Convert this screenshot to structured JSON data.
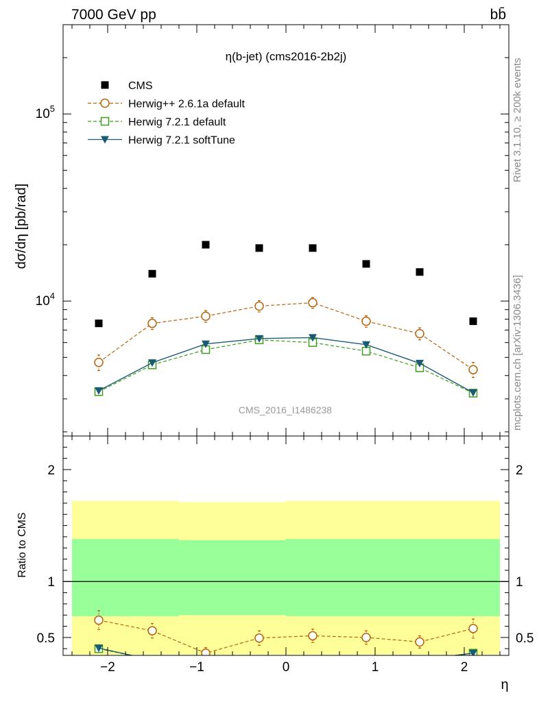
{
  "header": {
    "left": "7000 GeV pp",
    "right": "bb̄"
  },
  "side_labels": {
    "rivet": "Rivet 3.1.10, ≥ 200k events",
    "mcplots": "mcplots.cern.ch [arXiv:1306.3436]"
  },
  "chart_data": [
    {
      "type": "scatter",
      "title": "η(b-jet) (cms2016-2b2j)",
      "watermark": "CMS_2016_I1486238",
      "ylabel": "dσ/dη [pb/rad]",
      "yscale": "log",
      "xlim": [
        -2.5,
        2.5
      ],
      "ylim": [
        1900,
        300000
      ],
      "ytick_labels": [
        "10^4",
        "10^5"
      ],
      "legend_position": "top-left",
      "x": [
        -2.1,
        -1.5,
        -0.9,
        -0.3,
        0.3,
        0.9,
        1.5,
        2.1
      ],
      "series": [
        {
          "name": "CMS",
          "color": "#000000",
          "marker": "filled-square",
          "line": "none",
          "values": [
            7600,
            14000,
            20000,
            19200,
            19200,
            15800,
            14300,
            7800
          ]
        },
        {
          "name": "Herwig++ 2.6.1a default",
          "color": "#b8620a",
          "marker": "open-circle",
          "line": "dashed",
          "values": [
            4700,
            7600,
            8300,
            9400,
            9800,
            7800,
            6700,
            4300
          ],
          "errors": [
            450,
            550,
            600,
            650,
            650,
            550,
            500,
            400
          ]
        },
        {
          "name": "Herwig 7.2.1 default",
          "color": "#3a9e1a",
          "marker": "open-square",
          "line": "dashed",
          "values": [
            3280,
            4560,
            5500,
            6200,
            6000,
            5400,
            4400,
            3220
          ]
        },
        {
          "name": "Herwig 7.2.1 softTune",
          "color": "#1c5a74",
          "marker": "filled-triangle-down",
          "line": "solid",
          "values": [
            3320,
            4680,
            5900,
            6300,
            6380,
            5850,
            4650,
            3240
          ]
        }
      ]
    },
    {
      "type": "scatter",
      "ylabel": "Ratio to CMS",
      "xlabel": "η",
      "xlim": [
        -2.5,
        2.5
      ],
      "ylim": [
        0.34,
        2.3
      ],
      "xticks": [
        -2,
        -1,
        0,
        1,
        2
      ],
      "xtick_labels": [
        "−2",
        "−1",
        "0",
        "1",
        "2"
      ],
      "yticks": [
        0.5,
        1,
        2
      ],
      "ytick_labels": [
        "0.5",
        "1",
        "2"
      ],
      "bands": {
        "edges": [
          -2.4,
          -1.2,
          0,
          2.4
        ],
        "yellow": {
          "color": "#ffff99",
          "lower": [
            0.343,
            0.343,
            0.343
          ],
          "upper": [
            1.72,
            1.71,
            1.72
          ]
        },
        "green": {
          "color": "#99ff99",
          "lower": [
            0.69,
            0.7,
            0.69
          ],
          "upper": [
            1.38,
            1.37,
            1.38
          ]
        }
      },
      "series": [
        {
          "name": "Herwig++ 2.6.1a default",
          "color": "#b8620a",
          "marker": "open-circle",
          "line": "dashed",
          "values": [
            0.655,
            0.56,
            0.36,
            0.495,
            0.515,
            0.5,
            0.46,
            0.58
          ],
          "errors": [
            0.085,
            0.065,
            0.05,
            0.065,
            0.06,
            0.06,
            0.055,
            0.085
          ]
        },
        {
          "name": "Herwig 7.2.1 default",
          "color": "#3a9e1a",
          "marker": "open-square",
          "line": "dashed",
          "values": [
            0.4,
            0.3,
            0.3,
            0.3,
            0.3,
            0.3,
            0.3,
            0.36
          ]
        },
        {
          "name": "Herwig 7.2.1 softTune",
          "color": "#1c5a74",
          "marker": "filled-triangle-down",
          "line": "solid",
          "values": [
            0.405,
            0.3,
            0.3,
            0.3,
            0.3,
            0.3,
            0.3,
            0.36
          ]
        }
      ]
    }
  ]
}
